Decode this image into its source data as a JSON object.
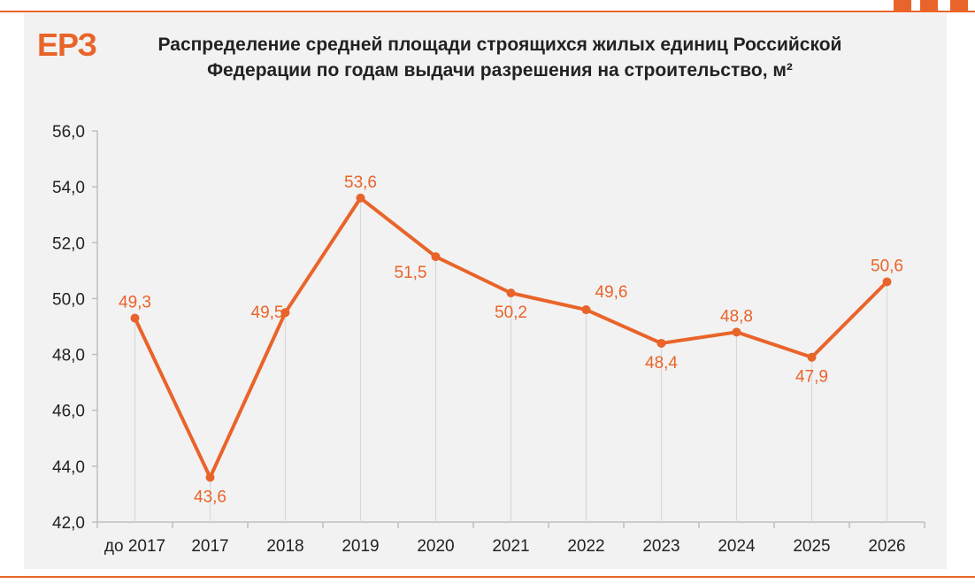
{
  "brand": {
    "logo_text": "ЕРЗ",
    "accent_color": "#e9642a"
  },
  "chart_data": {
    "type": "line",
    "title": "Распределение  средней площади строящихся жилых единиц Российской Федерации  по годам выдачи разрешения  на строительство, м²",
    "xlabel": "",
    "ylabel": "",
    "categories": [
      "до 2017",
      "2017",
      "2018",
      "2019",
      "2020",
      "2021",
      "2022",
      "2023",
      "2024",
      "2025",
      "2026"
    ],
    "values": [
      49.3,
      43.6,
      49.5,
      53.6,
      51.5,
      50.2,
      49.6,
      48.4,
      48.8,
      47.9,
      50.6
    ],
    "value_labels": [
      "49,3",
      "43,6",
      "49,5",
      "53,6",
      "51,5",
      "50,2",
      "49,6",
      "48,4",
      "48,8",
      "47,9",
      "50,6"
    ],
    "label_positions": [
      "above",
      "below",
      "left",
      "above",
      "below-left",
      "below",
      "above-right",
      "below",
      "above",
      "below",
      "above"
    ],
    "ylim": [
      42,
      56
    ],
    "yticks": [
      "42,0",
      "44,0",
      "46,0",
      "48,0",
      "50,0",
      "52,0",
      "54,0",
      "56,0"
    ],
    "ytick_values": [
      42,
      44,
      46,
      48,
      50,
      52,
      54,
      56
    ],
    "line_color": "#e9642a",
    "drop_lines": true,
    "grid": false,
    "legend": "none"
  }
}
